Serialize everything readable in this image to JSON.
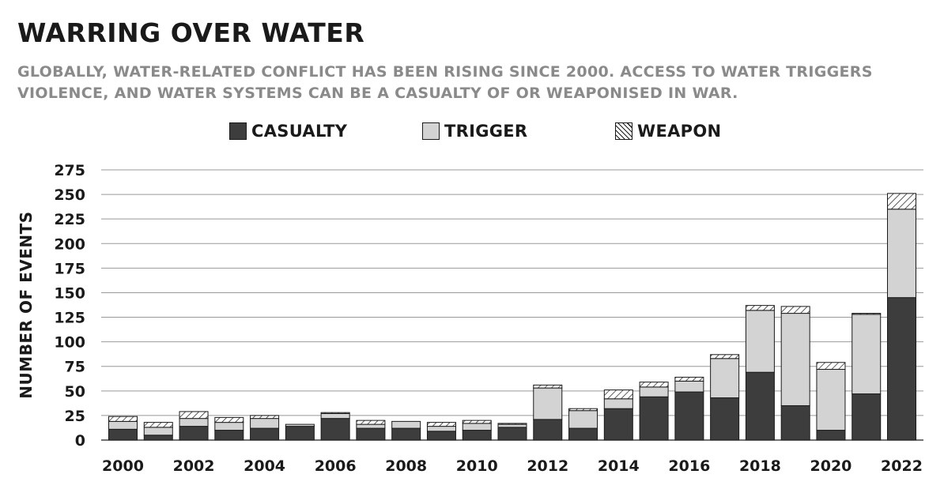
{
  "title": "WARRING OVER WATER",
  "subtitle": "GLOBALLY, WATER-RELATED CONFLICT HAS BEEN RISING SINCE 2000. ACCESS TO WATER TRIGGERS VIOLENCE, AND WATER SYSTEMS CAN BE A CASUALTY OF OR WEAPONISED IN WAR.",
  "colors": {
    "casualty": "#3d3d3d",
    "trigger": "#d3d3d3",
    "weapon_hatch": "#1a1a1a",
    "grid": "#999999"
  },
  "chart_data": {
    "type": "bar",
    "stacked": true,
    "title": "WARRING OVER WATER",
    "ylabel": "NUMBER OF EVENTS",
    "xlabel": "",
    "ylim": [
      0,
      275
    ],
    "yticks": [
      0,
      25,
      50,
      75,
      100,
      125,
      150,
      175,
      200,
      225,
      250,
      275
    ],
    "xtick_labels": [
      "2000",
      "2002",
      "2004",
      "2006",
      "2008",
      "2010",
      "2012",
      "2014",
      "2016",
      "2018",
      "2020",
      "2022"
    ],
    "grid": true,
    "legend_position": "top-center",
    "categories": [
      "2000",
      "2001",
      "2002",
      "2003",
      "2004",
      "2005",
      "2006",
      "2007",
      "2008",
      "2009",
      "2010",
      "2011",
      "2012",
      "2013",
      "2014",
      "2015",
      "2016",
      "2017",
      "2018",
      "2019",
      "2020",
      "2021",
      "2022"
    ],
    "series": [
      {
        "name": "CASUALTY",
        "fill": "solid-dark",
        "values": [
          11,
          5,
          14,
          10,
          12,
          14,
          22,
          12,
          12,
          9,
          10,
          13,
          21,
          12,
          32,
          44,
          49,
          43,
          69,
          35,
          10,
          47,
          145
        ]
      },
      {
        "name": "TRIGGER",
        "fill": "solid-light",
        "values": [
          8,
          8,
          8,
          8,
          10,
          2,
          5,
          4,
          7,
          5,
          7,
          3,
          32,
          18,
          10,
          10,
          11,
          40,
          63,
          94,
          62,
          81,
          90
        ]
      },
      {
        "name": "WEAPON",
        "fill": "hatched",
        "values": [
          5,
          5,
          7,
          5,
          3,
          0,
          1,
          4,
          0,
          4,
          3,
          1,
          3,
          2,
          9,
          5,
          4,
          4,
          5,
          7,
          7,
          1,
          16
        ]
      }
    ]
  }
}
